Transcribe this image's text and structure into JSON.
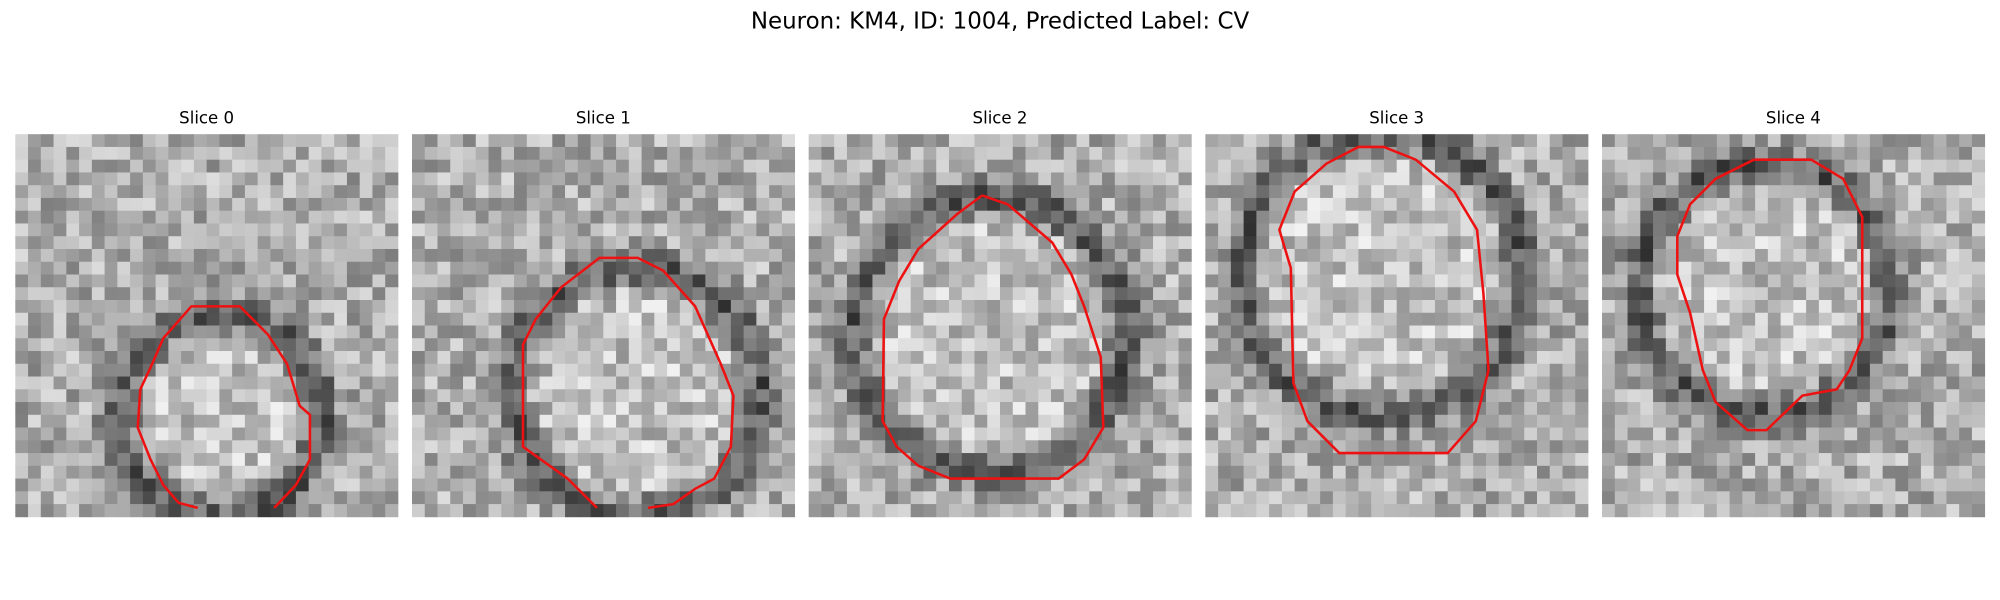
{
  "header": {
    "title": "Neuron: KM4, ID: 1004, Predicted Label: CV"
  },
  "panels": [
    {
      "title": "Slice 0"
    },
    {
      "title": "Slice 1"
    },
    {
      "title": "Slice 2"
    },
    {
      "title": "Slice 3"
    },
    {
      "title": "Slice 4"
    }
  ]
}
